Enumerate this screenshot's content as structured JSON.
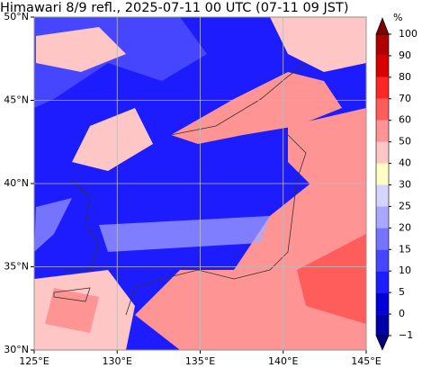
{
  "map": {
    "title": "Himawari 8/9 refl., 2025-07-11 00 UTC (07-11 09 JST)",
    "lonlim": [
      125,
      145
    ],
    "latlim": [
      30,
      50
    ],
    "lonticks": [
      {
        "value": 125,
        "label": "125°E"
      },
      {
        "value": 130,
        "label": "130°E"
      },
      {
        "value": 135,
        "label": "135°E"
      },
      {
        "value": 140,
        "label": "140°E"
      },
      {
        "value": 145,
        "label": "145°E"
      }
    ],
    "latticks": [
      {
        "value": 30,
        "label": "30°N"
      },
      {
        "value": 35,
        "label": "35°N"
      },
      {
        "value": 40,
        "label": "40°N"
      },
      {
        "value": 45,
        "label": "45°N"
      },
      {
        "value": 50,
        "label": "50°N"
      }
    ],
    "grid": true,
    "colorbar": {
      "unit": "%",
      "levels": [
        {
          "value": -1,
          "label": "−1"
        },
        0,
        5,
        10,
        15,
        20,
        25,
        30,
        40,
        50,
        60,
        70,
        80,
        90,
        100
      ],
      "colors": [
        "#00007a",
        "#0000a8",
        "#0000d8",
        "#1c1cff",
        "#4646ff",
        "#7474ff",
        "#a8a8ff",
        "#d4d4ff",
        "#ffffc4",
        "#ffc6c6",
        "#ff9494",
        "#ff5c5c",
        "#ff2626",
        "#d80000",
        "#b00000",
        "#7c0000"
      ]
    }
  }
}
